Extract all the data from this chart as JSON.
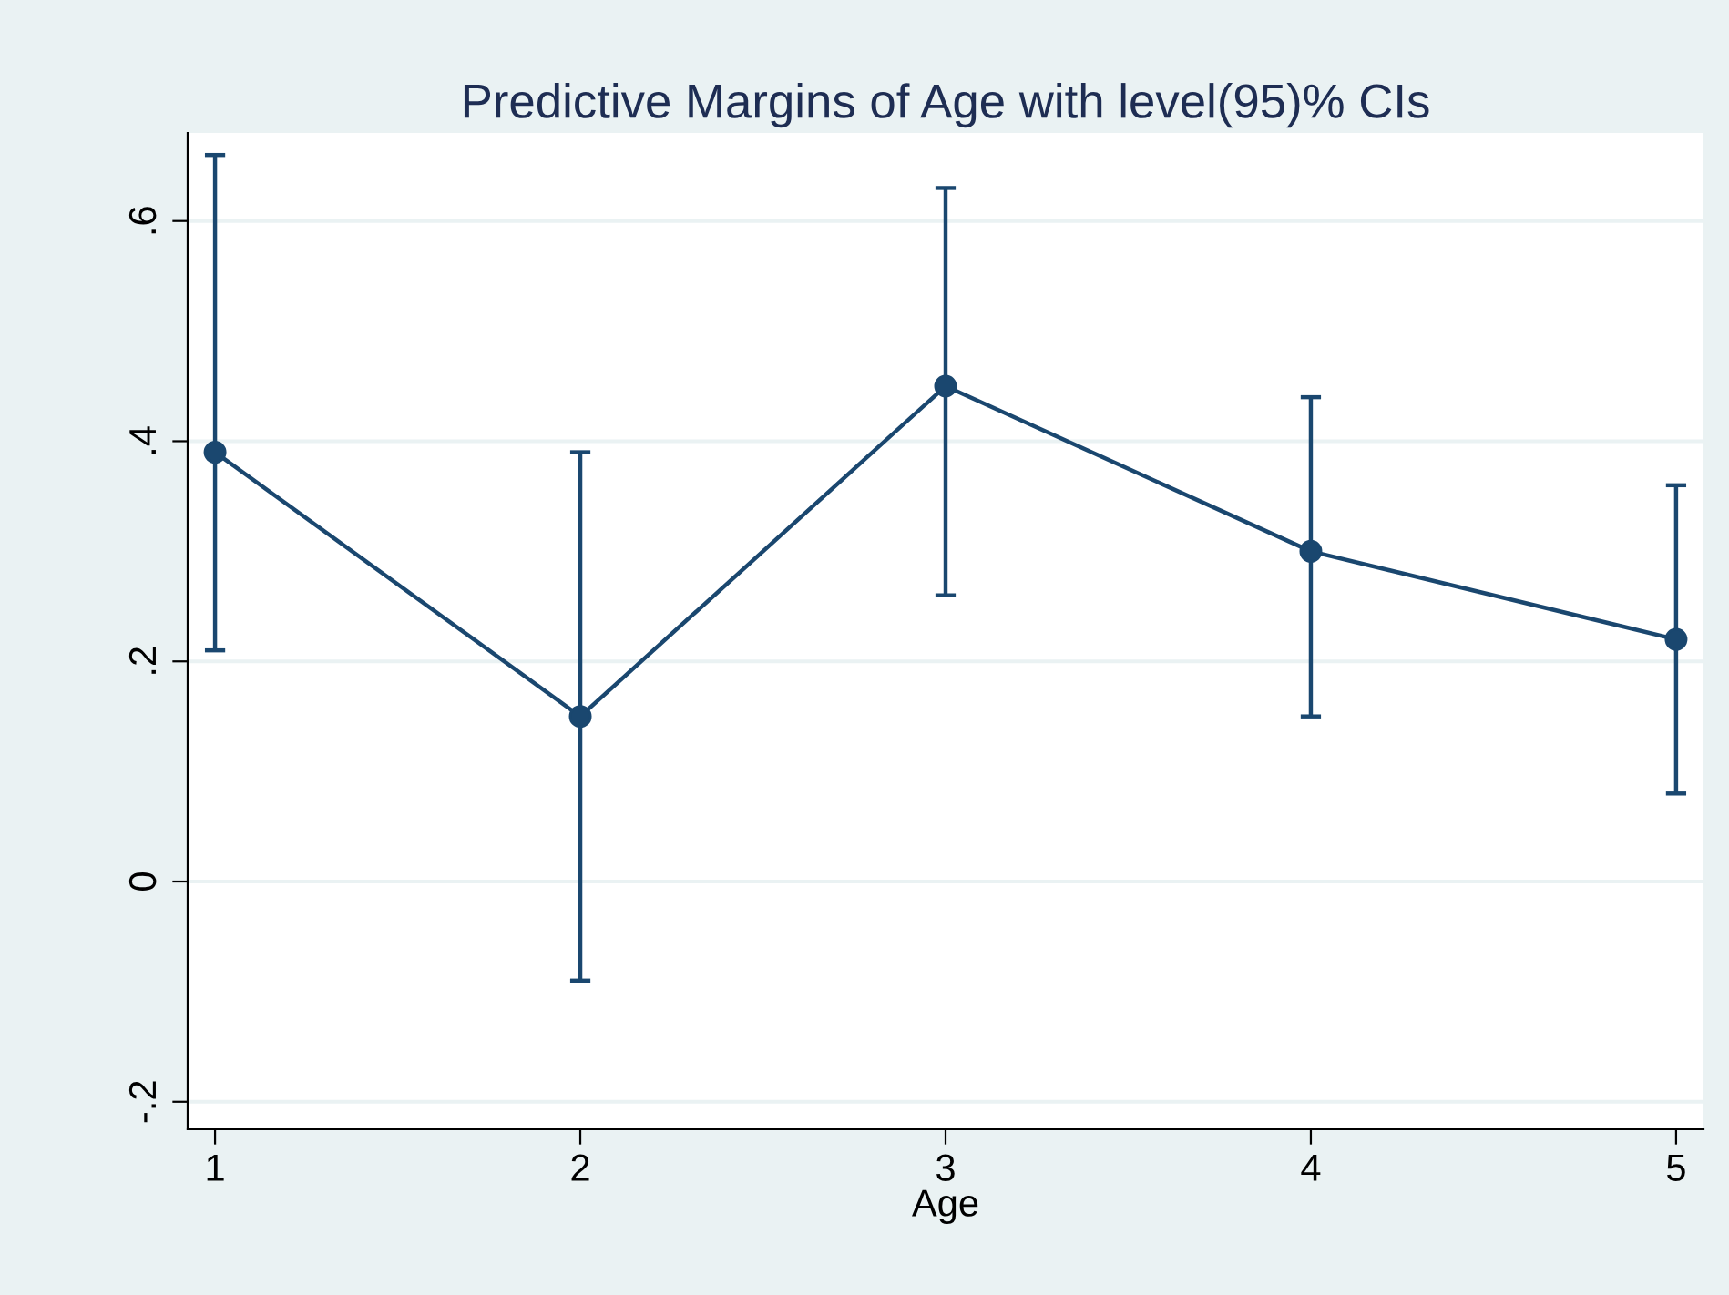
{
  "chart_data": {
    "type": "line",
    "title": "Predictive Margins of Age with level(95)% CIs",
    "xlabel": "Age",
    "x": [
      1,
      2,
      3,
      4,
      5
    ],
    "series": [
      {
        "color": "#1a476f",
        "values": [
          0.39,
          0.15,
          0.45,
          0.3,
          0.22
        ],
        "errors": [
          [
            0.21,
            0.66
          ],
          [
            -0.09,
            0.39
          ],
          [
            0.26,
            0.63
          ],
          [
            0.15,
            0.44
          ],
          [
            0.08,
            0.36
          ]
        ]
      }
    ],
    "xlim": [
      0.925,
      5.075
    ],
    "xticks": [
      1,
      2,
      3,
      4,
      5
    ],
    "ylim": [
      -0.225,
      0.68
    ],
    "yticks": [
      {
        "value": -0.2,
        "label": "-.2"
      },
      0,
      {
        "value": 0.2,
        "label": ".2"
      },
      {
        "value": 0.4,
        "label": ".4"
      },
      {
        "value": 0.6,
        "label": ".6"
      }
    ],
    "grid": "y",
    "marker": "circle",
    "line_style": "solid"
  }
}
